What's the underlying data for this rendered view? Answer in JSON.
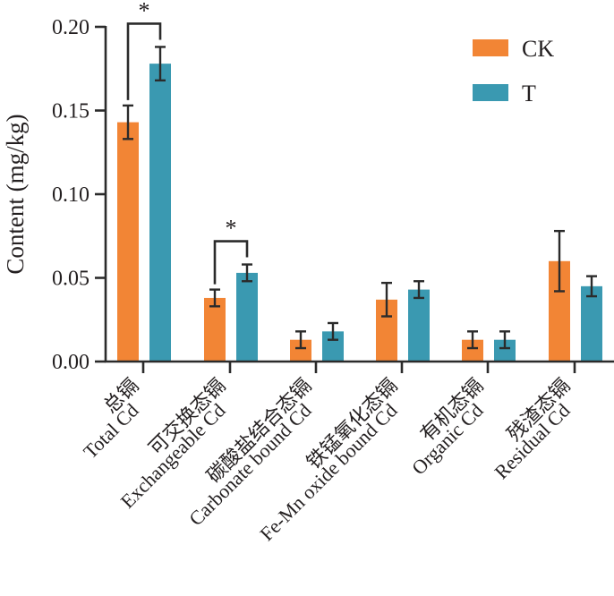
{
  "chart_data": {
    "type": "bar",
    "title": "",
    "xlabel": "",
    "ylabel": "Content (mg/kg)",
    "ylim": [
      0,
      0.2
    ],
    "yticks": [
      "0.00",
      "0.05",
      "0.10",
      "0.15",
      "0.20"
    ],
    "ytick_values": [
      0,
      0.05,
      0.1,
      0.15,
      0.2
    ],
    "legend_position": "top-right",
    "categories": [
      {
        "zh": "总镉",
        "en": "Total Cd"
      },
      {
        "zh": "可交换态镉",
        "en": "Exchangeable Cd"
      },
      {
        "zh": "碳酸盐结合态镉",
        "en": "Carbonate bound Cd"
      },
      {
        "zh": "铁锰氧化态镉",
        "en": "Fe-Mn oxide bound Cd"
      },
      {
        "zh": "有机态镉",
        "en": "Organic Cd"
      },
      {
        "zh": "残渣态镉",
        "en": "Residual Cd"
      }
    ],
    "series": [
      {
        "name": "CK",
        "color": "#f28535",
        "values": [
          0.143,
          0.038,
          0.013,
          0.037,
          0.013,
          0.06
        ],
        "error": [
          0.01,
          0.005,
          0.005,
          0.01,
          0.005,
          0.018
        ]
      },
      {
        "name": "T",
        "color": "#3a99b1",
        "values": [
          0.178,
          0.053,
          0.018,
          0.043,
          0.013,
          0.045
        ],
        "error": [
          0.01,
          0.005,
          0.005,
          0.005,
          0.005,
          0.006
        ]
      }
    ],
    "annotations": [
      {
        "category_index": 0,
        "text": "*"
      },
      {
        "category_index": 1,
        "text": "*"
      }
    ]
  }
}
